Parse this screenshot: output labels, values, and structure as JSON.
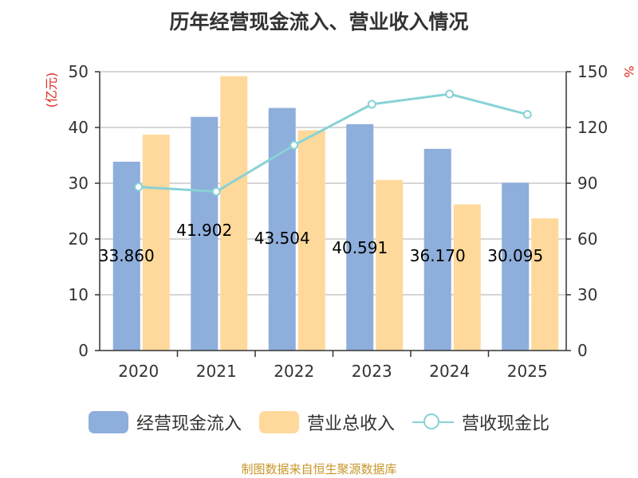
{
  "colors": {
    "series1": "#8eaedb",
    "series2": "#ffd99b",
    "line": "#88d2d6",
    "unit_red": "#e0271d",
    "source_gold": "#c8962a",
    "axis": "#333333",
    "grid": "#c8c8c8"
  },
  "chart_data": {
    "type": "bar",
    "title": "历年经营现金流入、营业收入情况",
    "categories": [
      "2020",
      "2021",
      "2022",
      "2023",
      "2024",
      "2025"
    ],
    "series": [
      {
        "name": "经营现金流入",
        "axis": "left",
        "values": [
          33.86,
          41.9,
          43.5,
          40.59,
          36.17,
          30.09
        ],
        "labels": [
          "33.860",
          "41.902",
          "43.504",
          "40.591",
          "36.170",
          "30.095"
        ]
      },
      {
        "name": "营业总收入",
        "axis": "left",
        "values": [
          38.7,
          49.2,
          39.5,
          30.6,
          26.2,
          23.7
        ]
      },
      {
        "name": "营收现金比",
        "axis": "right",
        "type": "line",
        "values": [
          88,
          85.5,
          110.5,
          132.5,
          138,
          127
        ]
      }
    ],
    "y_left": {
      "unit": "(亿元)",
      "ylim": [
        0,
        50
      ],
      "ticks": [
        "0",
        "10",
        "20",
        "30",
        "40",
        "50"
      ]
    },
    "y_right": {
      "unit": "%",
      "ylim": [
        0,
        150
      ],
      "ticks": [
        "0",
        "30",
        "60",
        "90",
        "120",
        "150"
      ]
    },
    "grid": true,
    "legend_position": "bottom"
  },
  "source": "制图数据来自恒生聚源数据库"
}
